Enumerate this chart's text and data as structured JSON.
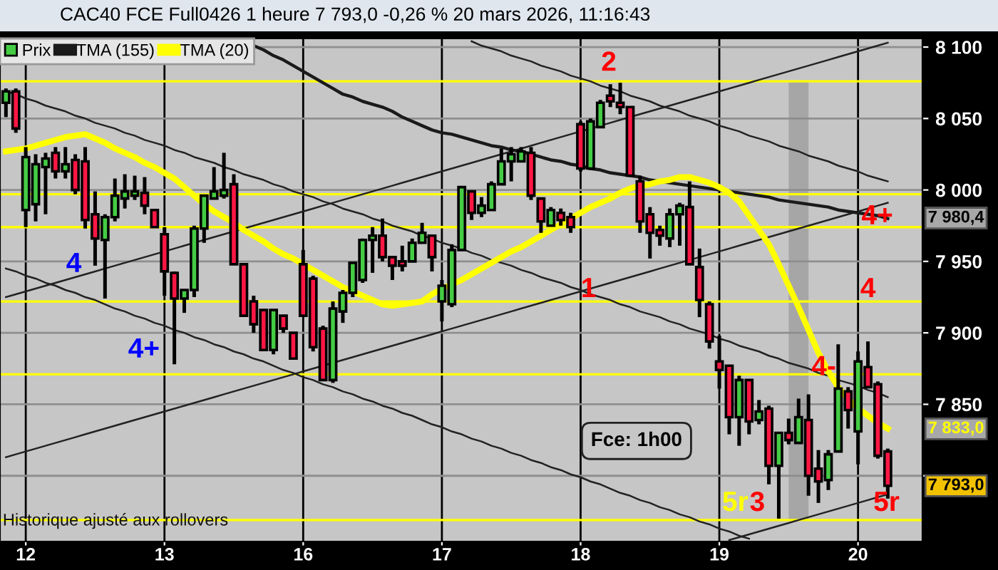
{
  "chart_data": {
    "type": "candlestick",
    "title": "CAC40 FCE Full0426 1 heure 7 793,0 -0,26 % 20 mars 2026, 11:16:43",
    "annotations": [
      "Historique ajusté aux rollovers",
      "Fce: 1h00",
      "2",
      "1",
      "4",
      "4+",
      "4+",
      "4",
      "4-",
      "5r",
      "3",
      "5r",
      "7 980,4",
      "7 833,0"
    ],
    "categories": [
      null,
      null,
      "12",
      null,
      null,
      null,
      null,
      null,
      null,
      null,
      null,
      null,
      null,
      null,
      null,
      null,
      "13",
      null,
      null,
      null,
      null,
      null,
      null,
      null,
      null,
      null,
      null,
      null,
      null,
      null,
      "16",
      null,
      null,
      null,
      null,
      null,
      null,
      null,
      null,
      null,
      null,
      null,
      null,
      null,
      "17",
      null,
      null,
      null,
      null,
      null,
      null,
      null,
      null,
      null,
      null,
      null,
      null,
      null,
      "18",
      null,
      null,
      null,
      null,
      null,
      null,
      null,
      null,
      null,
      null,
      null,
      null,
      null,
      "19",
      null,
      null,
      null,
      null,
      null,
      null,
      null,
      null,
      null,
      null,
      null,
      null,
      null,
      "20",
      null,
      null,
      null
    ],
    "ylim": [
      7754,
      8106
    ],
    "yticks": [
      {
        "value": 7800,
        "label": null
      },
      {
        "value": 7850,
        "label": "7 850"
      },
      {
        "value": 7900,
        "label": "7 900"
      },
      {
        "value": 7950,
        "label": "7 950"
      },
      {
        "value": 8000,
        "label": "8 000"
      },
      {
        "value": 8050,
        "label": "8 050"
      },
      {
        "value": 8100,
        "label": "8 100"
      }
    ],
    "grid": true,
    "legend": "top left",
    "ref_lines": [
      {
        "axis": "y",
        "value": 8076,
        "color": "#ffff00"
      },
      {
        "axis": "y",
        "value": 7997,
        "color": "#ffff00"
      },
      {
        "axis": "y",
        "value": 7974,
        "color": "#ffff00"
      },
      {
        "axis": "y",
        "value": 7922,
        "color": "#ffff00"
      },
      {
        "axis": "y",
        "value": 7871,
        "color": "#ffff00"
      },
      {
        "axis": "y",
        "value": 7769,
        "color": "#ffff00"
      }
    ],
    "series": [
      {
        "name": "Prix",
        "color": "#44cc44",
        "ohlc": [
          [
            8061,
            8071,
            8051,
            8069
          ],
          [
            8069,
            8071,
            8040,
            8043
          ],
          [
            7986,
            8030,
            7974,
            8023
          ],
          [
            7990,
            8025,
            7978,
            8018
          ],
          [
            8016,
            8026,
            7983,
            8022
          ],
          [
            8026,
            8030,
            8008,
            8013
          ],
          [
            8013,
            8030,
            8008,
            8018
          ],
          [
            8021,
            8025,
            7997,
            8000
          ],
          [
            8020,
            8030,
            7973,
            7979
          ],
          [
            7983,
            7999,
            7947,
            7966
          ],
          [
            7965,
            7983,
            7924,
            7981
          ],
          [
            7981,
            8008,
            7978,
            7996
          ],
          [
            7994,
            8011,
            7987,
            7999
          ],
          [
            7996,
            8010,
            7993,
            7999
          ],
          [
            7998,
            8009,
            7983,
            7989
          ],
          [
            7986,
            7986,
            7974,
            7974
          ],
          [
            7969,
            7974,
            7926,
            7943
          ],
          [
            7942,
            7943,
            7878,
            7924
          ],
          [
            7924,
            7930,
            7914,
            7930
          ],
          [
            7930,
            7975,
            7925,
            7973
          ],
          [
            7973,
            7996,
            7963,
            7996
          ],
          [
            7994,
            8016,
            7994,
            7999
          ],
          [
            7996,
            8026,
            7994,
            8000
          ],
          [
            8004,
            8011,
            7948,
            7948
          ],
          [
            7948,
            7948,
            7912,
            7912
          ],
          [
            7922,
            7926,
            7900,
            7906
          ],
          [
            7916,
            7916,
            7888,
            7888
          ],
          [
            7888,
            7916,
            7885,
            7916
          ],
          [
            7912,
            7912,
            7900,
            7903
          ],
          [
            7900,
            7900,
            7882,
            7882
          ],
          [
            7948,
            7958,
            7912,
            7912
          ],
          [
            7938,
            7940,
            7887,
            7890
          ],
          [
            7903,
            7905,
            7867,
            7867
          ],
          [
            7867,
            7922,
            7865,
            7917
          ],
          [
            7915,
            7930,
            7907,
            7928
          ],
          [
            7928,
            7949,
            7925,
            7949
          ],
          [
            7937,
            7966,
            7935,
            7965
          ],
          [
            7965,
            7974,
            7942,
            7968
          ],
          [
            7968,
            7980,
            7950,
            7953
          ],
          [
            7953,
            7953,
            7937,
            7947
          ],
          [
            7950,
            7961,
            7943,
            7947
          ],
          [
            7950,
            7966,
            7950,
            7963
          ],
          [
            7963,
            7977,
            7963,
            7970
          ],
          [
            7968,
            7968,
            7943,
            7953
          ],
          [
            7922,
            7937,
            7908,
            7933
          ],
          [
            7920,
            7962,
            7918,
            7958
          ],
          [
            7958,
            8002,
            7958,
            8002
          ],
          [
            7999,
            7999,
            7979,
            7984
          ],
          [
            7984,
            7995,
            7981,
            7989
          ],
          [
            7986,
            8006,
            7986,
            8004
          ],
          [
            8004,
            8029,
            8004,
            8020
          ],
          [
            8020,
            8030,
            8006,
            8025
          ],
          [
            8020,
            8030,
            8020,
            8027
          ],
          [
            8026,
            8030,
            7993,
            7996
          ],
          [
            7994,
            7994,
            7970,
            7978
          ],
          [
            7975,
            7988,
            7975,
            7986
          ],
          [
            7984,
            7987,
            7975,
            7979
          ],
          [
            7981,
            7984,
            7970,
            7974
          ],
          [
            8046,
            8048,
            8013,
            8015
          ],
          [
            8015,
            8050,
            8014,
            8048
          ],
          [
            8044,
            8063,
            8044,
            8061
          ],
          [
            8066,
            8074,
            8058,
            8062
          ],
          [
            8061,
            8075,
            8053,
            8058
          ],
          [
            8058,
            8058,
            8010,
            8010
          ],
          [
            8006,
            8010,
            7970,
            7978
          ],
          [
            7983,
            7988,
            7952,
            7970
          ],
          [
            7972,
            7975,
            7961,
            7968
          ],
          [
            7966,
            7987,
            7960,
            7983
          ],
          [
            7983,
            7991,
            7961,
            7989
          ],
          [
            7988,
            8006,
            7948,
            7948
          ],
          [
            7946,
            7959,
            7911,
            7923
          ],
          [
            7920,
            7922,
            7889,
            7894
          ],
          [
            7880,
            7898,
            7861,
            7874
          ],
          [
            7877,
            7877,
            7829,
            7841
          ],
          [
            7841,
            7870,
            7821,
            7867
          ],
          [
            7867,
            7867,
            7829,
            7838
          ],
          [
            7839,
            7853,
            7836,
            7845
          ],
          [
            7847,
            7849,
            7794,
            7807
          ],
          [
            7807,
            7830,
            7770,
            7830
          ],
          [
            7830,
            7840,
            7822,
            7825
          ],
          [
            7823,
            7854,
            7823,
            7841
          ],
          [
            7839,
            7857,
            7786,
            7800
          ],
          [
            7805,
            7818,
            7781,
            7796
          ],
          [
            7797,
            7818,
            7790,
            7815
          ],
          [
            7817,
            7892,
            7817,
            7861
          ],
          [
            7859,
            7862,
            7833,
            7846
          ],
          [
            7831,
            7887,
            7808,
            7880
          ],
          [
            7876,
            7894,
            7862,
            7862
          ],
          [
            7864,
            7866,
            7812,
            7814
          ],
          [
            7817,
            7819,
            7784,
            7793
          ]
        ],
        "colors": [
          "#44cc44",
          "#ff1744",
          "#44cc44",
          "#44cc44",
          "#44cc44",
          "#ff1744",
          "#44cc44",
          "#ff1744",
          "#ff1744",
          "#ff1744",
          "#44cc44",
          "#44cc44",
          "#44cc44",
          "#44cc44",
          "#ff1744",
          "#ff1744",
          "#ff1744",
          "#ff1744",
          "#44cc44",
          "#44cc44",
          "#44cc44",
          "#44cc44",
          "#44cc44",
          "#ff1744",
          "#ff1744",
          "#ff1744",
          "#ff1744",
          "#44cc44",
          "#ff1744",
          "#ff1744",
          "#ff1744",
          "#ff1744",
          "#ff1744",
          "#44cc44",
          "#44cc44",
          "#44cc44",
          "#44cc44",
          "#44cc44",
          "#ff1744",
          "#ff1744",
          "#ff1744",
          "#44cc44",
          "#44cc44",
          "#ff1744",
          "#44cc44",
          "#44cc44",
          "#44cc44",
          "#ff1744",
          "#44cc44",
          "#44cc44",
          "#44cc44",
          "#44cc44",
          "#44cc44",
          "#ff1744",
          "#ff1744",
          "#44cc44",
          "#ff1744",
          "#ff1744",
          "#ff1744",
          "#44cc44",
          "#44cc44",
          "#ff1744",
          "#ff1744",
          "#ff1744",
          "#ff1744",
          "#ff1744",
          "#ff1744",
          "#44cc44",
          "#44cc44",
          "#ff1744",
          "#ff1744",
          "#ff1744",
          "#ff1744",
          "#ff1744",
          "#44cc44",
          "#ff1744",
          "#44cc44",
          "#ff1744",
          "#44cc44",
          "#ff1744",
          "#44cc44",
          "#ff1744",
          "#ff1744",
          "#44cc44",
          "#44cc44",
          "#ff1744",
          "#44cc44",
          "#ff1744",
          "#ff1744",
          "#ff1744"
        ],
        "value_labels": [
          null,
          null,
          null,
          null,
          null,
          null,
          null,
          null,
          null,
          null,
          null,
          null,
          null,
          null,
          null,
          null,
          null,
          null,
          null,
          null,
          null,
          null,
          null,
          null,
          null,
          null,
          null,
          null,
          null,
          null,
          null,
          null,
          null,
          null,
          null,
          null,
          null,
          null,
          null,
          null,
          null,
          null,
          null,
          null,
          null,
          null,
          null,
          null,
          null,
          null,
          null,
          null,
          null,
          null,
          null,
          null,
          null,
          null,
          null,
          null,
          null,
          null,
          null,
          null,
          null,
          null,
          null,
          null,
          null,
          null,
          null,
          null,
          null,
          null,
          null,
          null,
          null,
          null,
          null,
          null,
          null,
          null,
          null,
          null,
          null,
          null,
          null,
          null,
          null,
          "7 793,0"
        ]
      },
      {
        "type": "line",
        "name": "TMA (155)",
        "color": "#1a1a1a",
        "values": [
          null,
          null,
          null,
          null,
          null,
          null,
          null,
          null,
          null,
          null,
          null,
          null,
          null,
          null,
          null,
          null,
          null,
          null,
          null,
          null,
          null,
          null,
          null,
          null,
          null,
          8101,
          8098,
          8094,
          8091,
          8087,
          8083,
          8079,
          8075,
          8071,
          8067,
          8065,
          8062,
          8060,
          8058,
          8055,
          8051,
          8048,
          8045,
          8042,
          8040,
          8039,
          8037,
          8035,
          8033,
          8031,
          8030,
          8028,
          8027,
          8025,
          8023,
          8021,
          8020,
          8018,
          8017,
          8015,
          8014,
          8012,
          8011,
          8010,
          8009,
          8007,
          8006,
          8005,
          8004,
          8003,
          8002,
          8001,
          8000,
          7999,
          7998,
          7997,
          7996,
          7995,
          7993,
          7992,
          7991,
          7990,
          7989,
          7988,
          7986,
          7985,
          7984,
          7983,
          7982,
          7980
        ]
      },
      {
        "type": "line",
        "name": "TMA (20)",
        "color": "#ffff00",
        "values": [
          8027,
          8028,
          8029,
          8031,
          8033,
          8035,
          8037,
          8038,
          8039,
          8036,
          8033,
          8029,
          8026,
          8023,
          8019,
          8016,
          8012,
          8008,
          8002,
          7996,
          7990,
          7985,
          7981,
          7977,
          7972,
          7968,
          7964,
          7959,
          7955,
          7952,
          7948,
          7944,
          7940,
          7936,
          7932,
          7929,
          7926,
          7923,
          7920,
          7919,
          7920,
          7921,
          7922,
          7927,
          7931,
          7934,
          7937,
          7941,
          7945,
          7949,
          7953,
          7957,
          7960,
          7964,
          7968,
          7972,
          7976,
          7980,
          7984,
          7988,
          7991,
          7994,
          7998,
          8001,
          8003,
          8004,
          8006,
          8007,
          8009,
          8009,
          8007,
          8005,
          8002,
          7998,
          7992,
          7982,
          7972,
          7962,
          7948,
          7933,
          7918,
          7902,
          7886,
          7873,
          7862,
          7854,
          7847,
          7842,
          7837,
          7833
        ]
      },
      {
        "type": "line",
        "color": "#222222",
        "values": [
          8069,
          8067,
          8064,
          8062,
          8059,
          8057,
          8055,
          8052,
          8050,
          8047,
          8045,
          8043,
          8040,
          8038,
          8035,
          8033,
          8031,
          8028,
          8026,
          8023,
          8021,
          8019,
          8016,
          8014,
          8011,
          8009,
          8007,
          8004,
          8002,
          7999,
          7997,
          7995,
          7992,
          7990,
          7987,
          7985,
          7983,
          7980,
          7978,
          7975,
          7973,
          7971,
          7968,
          7966,
          7963,
          7961,
          7959,
          7956,
          7954,
          7951,
          7949,
          7947,
          7944,
          7942,
          7939,
          7937,
          7935,
          7932,
          7930,
          7927,
          7925,
          7923,
          7920,
          7918,
          7915,
          7913,
          7911,
          7908,
          7906,
          7903,
          7901,
          7899,
          7896,
          7894,
          7891,
          7889,
          7887,
          7884,
          7882,
          7879,
          7877,
          7875,
          7872,
          7870,
          7867,
          7865,
          7863,
          7860,
          7858,
          7855
        ]
      },
      {
        "type": "line",
        "color": "#222222",
        "values": [
          7945,
          7943,
          7940,
          7938,
          7935,
          7933,
          7930,
          7928,
          7925,
          7923,
          7920,
          7917,
          7915,
          7912,
          7910,
          7907,
          7905,
          7902,
          7900,
          7897,
          7895,
          7892,
          7890,
          7887,
          7885,
          7882,
          7880,
          7877,
          7874,
          7872,
          7869,
          7867,
          7864,
          7862,
          7859,
          7857,
          7854,
          7852,
          7849,
          7847,
          7844,
          7842,
          7839,
          7836,
          7834,
          7831,
          7829,
          7826,
          7824,
          7821,
          7819,
          7816,
          7814,
          7811,
          7809,
          7806,
          7804,
          7801,
          7799,
          7796,
          7794,
          7791,
          7788,
          7786,
          7783,
          7781,
          7778,
          7776,
          7773,
          7771,
          7768,
          7766,
          7763,
          7761,
          7758,
          7756,
          null,
          null,
          null,
          null,
          null,
          null,
          null,
          null,
          null,
          null,
          null,
          null,
          null,
          null
        ]
      },
      {
        "type": "line",
        "color": "#222222",
        "values": [
          7813,
          7815,
          7817,
          7819,
          7821,
          7823,
          7825,
          7827,
          7829,
          7831,
          7833,
          7835,
          7837,
          7839,
          7841,
          7843,
          7845,
          7847,
          7849,
          7851,
          7853,
          7855,
          7857,
          7859,
          7861,
          7863,
          7865,
          7867,
          7869,
          7871,
          7873,
          7875,
          7877,
          7879,
          7881,
          7883,
          7885,
          7887,
          7889,
          7891,
          7893,
          7895,
          7897,
          7899,
          7901,
          7903,
          7905,
          7907,
          7909,
          7911,
          7913,
          7915,
          7917,
          7919,
          7921,
          7923,
          7925,
          7927,
          7929,
          7931,
          7933,
          7935,
          7937,
          7939,
          7941,
          7943,
          7945,
          7947,
          7949,
          7951,
          7953,
          7955,
          7957,
          7959,
          7961,
          7963,
          7965,
          7967,
          7969,
          7971,
          7973,
          7975,
          7977,
          7979,
          7981,
          7983,
          7985,
          7987,
          7989,
          7991
        ]
      },
      {
        "type": "line",
        "color": "#222222",
        "values": [
          7925,
          7927,
          7929,
          7931,
          7933,
          7935,
          7937,
          7939,
          7941,
          7943,
          7945,
          7947,
          7949,
          7951,
          7953,
          7955,
          7957,
          7959,
          7961,
          7963,
          7965,
          7967,
          7969,
          7971,
          7973,
          7975,
          7977,
          7979,
          7981,
          7983,
          7985,
          7987,
          7989,
          7991,
          7993,
          7995,
          7997,
          7999,
          8001,
          8003,
          8005,
          8007,
          8009,
          8011,
          8013,
          8015,
          8017,
          8019,
          8021,
          8023,
          8025,
          8027,
          8029,
          8031,
          8033,
          8035,
          8037,
          8039,
          8041,
          8043,
          8045,
          8047,
          8049,
          8051,
          8053,
          8055,
          8057,
          8059,
          8061,
          8063,
          8065,
          8067,
          8069,
          8071,
          8073,
          8075,
          8077,
          8079,
          8081,
          8083,
          8085,
          8087,
          8089,
          8091,
          8093,
          8095,
          8097,
          8099,
          8101,
          8103
        ]
      },
      {
        "type": "line",
        "color": "#222222",
        "values": [
          null,
          null,
          null,
          null,
          null,
          null,
          null,
          null,
          null,
          null,
          null,
          null,
          null,
          null,
          null,
          null,
          null,
          null,
          null,
          null,
          null,
          null,
          null,
          null,
          null,
          null,
          null,
          null,
          null,
          null,
          null,
          null,
          null,
          null,
          null,
          null,
          null,
          null,
          null,
          null,
          null,
          null,
          null,
          null,
          null,
          null,
          null,
          8104,
          8101,
          8099,
          8097,
          8094,
          8092,
          8090,
          8087,
          8085,
          8083,
          8080,
          8078,
          8076,
          8073,
          8071,
          8069,
          8066,
          8064,
          8062,
          8059,
          8057,
          8055,
          8052,
          8050,
          8048,
          8045,
          8043,
          8041,
          8038,
          8036,
          8034,
          8031,
          8029,
          8027,
          8024,
          8022,
          8020,
          8017,
          8015,
          8013,
          8010,
          8008,
          8006
        ]
      },
      {
        "type": "line",
        "color": "#222222",
        "values": [
          null,
          null,
          null,
          null,
          null,
          null,
          null,
          null,
          null,
          null,
          null,
          null,
          null,
          null,
          null,
          null,
          null,
          null,
          null,
          null,
          null,
          null,
          null,
          null,
          null,
          null,
          null,
          null,
          null,
          null,
          null,
          null,
          null,
          null,
          null,
          null,
          null,
          null,
          null,
          null,
          null,
          null,
          null,
          null,
          null,
          null,
          null,
          null,
          null,
          null,
          null,
          null,
          null,
          null,
          null,
          null,
          null,
          null,
          null,
          null,
          null,
          null,
          null,
          null,
          null,
          null,
          null,
          null,
          null,
          null,
          null,
          null,
          null,
          7755,
          7757,
          7759,
          7761,
          7763,
          7765,
          7767,
          7769,
          7771,
          7773,
          7775,
          7777,
          7779,
          7781,
          7783,
          7785,
          7787
        ]
      }
    ]
  }
}
